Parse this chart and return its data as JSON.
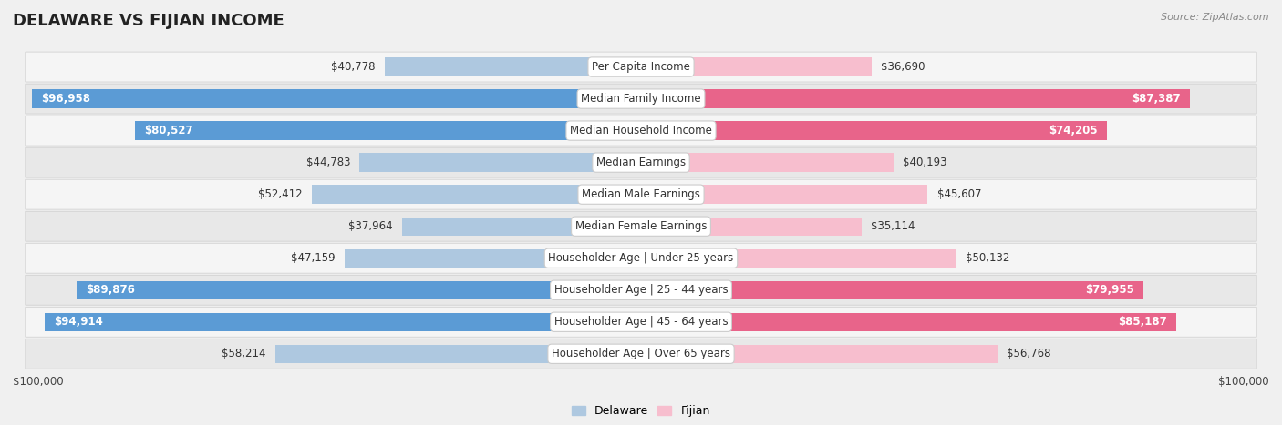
{
  "title": "DELAWARE VS FIJIAN INCOME",
  "source": "Source: ZipAtlas.com",
  "categories": [
    "Per Capita Income",
    "Median Family Income",
    "Median Household Income",
    "Median Earnings",
    "Median Male Earnings",
    "Median Female Earnings",
    "Householder Age | Under 25 years",
    "Householder Age | 25 - 44 years",
    "Householder Age | 45 - 64 years",
    "Householder Age | Over 65 years"
  ],
  "delaware_values": [
    40778,
    96958,
    80527,
    44783,
    52412,
    37964,
    47159,
    89876,
    94914,
    58214
  ],
  "fijian_values": [
    36690,
    87387,
    74205,
    40193,
    45607,
    35114,
    50132,
    79955,
    85187,
    56768
  ],
  "delaware_color_light": "#aec8e0",
  "delaware_color_dark": "#5b9bd5",
  "fijian_color_light": "#f7bece",
  "fijian_color_dark": "#e8648a",
  "dark_threshold": 60000,
  "max_value": 100000,
  "bg_color": "#f0f0f0",
  "row_bg_even": "#f5f5f5",
  "row_bg_odd": "#e8e8e8",
  "title_fontsize": 13,
  "label_fontsize": 8.5,
  "value_fontsize": 8.5,
  "legend_fontsize": 9,
  "xlabel_left": "$100,000",
  "xlabel_right": "$100,000"
}
